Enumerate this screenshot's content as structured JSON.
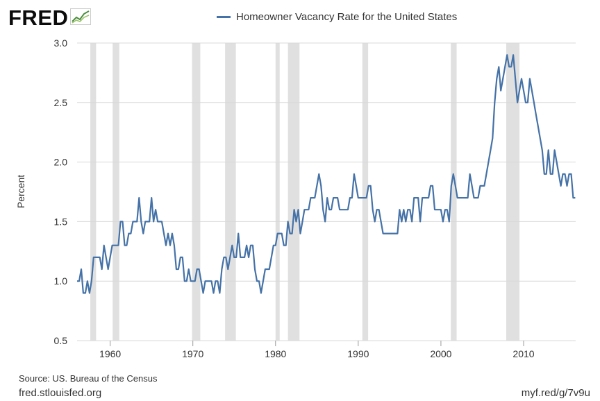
{
  "header": {
    "logo_text": "FRED",
    "logo_icon": "chart-line-icon"
  },
  "legend": {
    "label": "Homeowner Vacancy Rate for the United States",
    "color": "#4572a7"
  },
  "footer": {
    "source": "Source: US. Bureau of the Census",
    "site": "fred.stlouisfed.org",
    "link": "myf.red/g/7v9u"
  },
  "colors": {
    "series": "#4572a7",
    "recession": "#e0e0e0",
    "grid": "#d8d8d8"
  },
  "chart_data": {
    "type": "line",
    "title": "",
    "xlabel": "",
    "ylabel": "Percent",
    "ylim": [
      0.5,
      3.0
    ],
    "xlim": [
      1956,
      2016.3
    ],
    "yticks": [
      "0.5",
      "1.0",
      "1.5",
      "2.0",
      "2.5",
      "3.0"
    ],
    "xticks": [
      "1960",
      "1970",
      "1980",
      "1990",
      "2000",
      "2010"
    ],
    "grid": true,
    "legend_position": "top",
    "recessions": [
      [
        1957.6,
        1958.3
      ],
      [
        1960.3,
        1961.1
      ],
      [
        1969.9,
        1970.9
      ],
      [
        1973.9,
        1975.2
      ],
      [
        1980.0,
        1980.5
      ],
      [
        1981.5,
        1982.9
      ],
      [
        1990.5,
        1991.2
      ],
      [
        2001.2,
        2001.9
      ],
      [
        2007.9,
        2009.5
      ]
    ],
    "series": [
      {
        "name": "Homeowner Vacancy Rate for the United States",
        "x": [
          1956.0,
          1956.25,
          1956.5,
          1956.75,
          1957.0,
          1957.25,
          1957.5,
          1957.75,
          1958.0,
          1958.25,
          1958.5,
          1958.75,
          1959.0,
          1959.25,
          1959.5,
          1959.75,
          1960.0,
          1960.25,
          1960.5,
          1960.75,
          1961.0,
          1961.25,
          1961.5,
          1961.75,
          1962.0,
          1962.25,
          1962.5,
          1962.75,
          1963.0,
          1963.25,
          1963.5,
          1963.75,
          1964.0,
          1964.25,
          1964.5,
          1964.75,
          1965.0,
          1965.25,
          1965.5,
          1965.75,
          1966.0,
          1966.25,
          1966.5,
          1966.75,
          1967.0,
          1967.25,
          1967.5,
          1967.75,
          1968.0,
          1968.25,
          1968.5,
          1968.75,
          1969.0,
          1969.25,
          1969.5,
          1969.75,
          1970.0,
          1970.25,
          1970.5,
          1970.75,
          1971.0,
          1971.25,
          1971.5,
          1971.75,
          1972.0,
          1972.25,
          1972.5,
          1972.75,
          1973.0,
          1973.25,
          1973.5,
          1973.75,
          1974.0,
          1974.25,
          1974.5,
          1974.75,
          1975.0,
          1975.25,
          1975.5,
          1975.75,
          1976.0,
          1976.25,
          1976.5,
          1976.75,
          1977.0,
          1977.25,
          1977.5,
          1977.75,
          1978.0,
          1978.25,
          1978.5,
          1978.75,
          1979.0,
          1979.25,
          1979.5,
          1979.75,
          1980.0,
          1980.25,
          1980.5,
          1980.75,
          1981.0,
          1981.25,
          1981.5,
          1981.75,
          1982.0,
          1982.25,
          1982.5,
          1982.75,
          1983.0,
          1983.25,
          1983.5,
          1983.75,
          1984.0,
          1984.25,
          1984.5,
          1984.75,
          1985.0,
          1985.25,
          1985.5,
          1985.75,
          1986.0,
          1986.25,
          1986.5,
          1986.75,
          1987.0,
          1987.25,
          1987.5,
          1987.75,
          1988.0,
          1988.25,
          1988.5,
          1988.75,
          1989.0,
          1989.25,
          1989.5,
          1989.75,
          1990.0,
          1990.25,
          1990.5,
          1990.75,
          1991.0,
          1991.25,
          1991.5,
          1991.75,
          1992.0,
          1992.25,
          1992.5,
          1992.75,
          1993.0,
          1993.25,
          1993.5,
          1993.75,
          1994.0,
          1994.25,
          1994.5,
          1994.75,
          1995.0,
          1995.25,
          1995.5,
          1995.75,
          1996.0,
          1996.25,
          1996.5,
          1996.75,
          1997.0,
          1997.25,
          1997.5,
          1997.75,
          1998.0,
          1998.25,
          1998.5,
          1998.75,
          1999.0,
          1999.25,
          1999.5,
          1999.75,
          2000.0,
          2000.25,
          2000.5,
          2000.75,
          2001.0,
          2001.25,
          2001.5,
          2001.75,
          2002.0,
          2002.25,
          2002.5,
          2002.75,
          2003.0,
          2003.25,
          2003.5,
          2003.75,
          2004.0,
          2004.25,
          2004.5,
          2004.75,
          2005.0,
          2005.25,
          2005.5,
          2005.75,
          2006.0,
          2006.25,
          2006.5,
          2006.75,
          2007.0,
          2007.25,
          2007.5,
          2007.75,
          2008.0,
          2008.25,
          2008.5,
          2008.75,
          2009.0,
          2009.25,
          2009.5,
          2009.75,
          2010.0,
          2010.25,
          2010.5,
          2010.75,
          2011.0,
          2011.25,
          2011.5,
          2011.75,
          2012.0,
          2012.25,
          2012.5,
          2012.75,
          2013.0,
          2013.25,
          2013.5,
          2013.75,
          2014.0,
          2014.25,
          2014.5,
          2014.75,
          2015.0,
          2015.25,
          2015.5,
          2015.75,
          2016.0,
          2016.25
        ],
        "values": [
          1.0,
          1.0,
          1.1,
          0.9,
          0.9,
          1.0,
          0.9,
          1.0,
          1.2,
          1.2,
          1.2,
          1.2,
          1.1,
          1.3,
          1.2,
          1.1,
          1.2,
          1.3,
          1.3,
          1.3,
          1.3,
          1.5,
          1.5,
          1.3,
          1.3,
          1.4,
          1.4,
          1.5,
          1.5,
          1.5,
          1.7,
          1.5,
          1.4,
          1.5,
          1.5,
          1.5,
          1.7,
          1.5,
          1.6,
          1.5,
          1.5,
          1.5,
          1.4,
          1.3,
          1.4,
          1.3,
          1.4,
          1.3,
          1.1,
          1.1,
          1.2,
          1.2,
          1.0,
          1.0,
          1.1,
          1.0,
          1.0,
          1.0,
          1.1,
          1.1,
          1.0,
          0.9,
          1.0,
          1.0,
          1.0,
          1.0,
          0.9,
          1.0,
          1.0,
          0.9,
          1.1,
          1.2,
          1.2,
          1.1,
          1.2,
          1.3,
          1.2,
          1.2,
          1.4,
          1.2,
          1.2,
          1.2,
          1.3,
          1.2,
          1.3,
          1.3,
          1.1,
          1.0,
          1.0,
          0.9,
          1.0,
          1.1,
          1.1,
          1.1,
          1.2,
          1.3,
          1.3,
          1.4,
          1.4,
          1.4,
          1.3,
          1.3,
          1.5,
          1.4,
          1.4,
          1.6,
          1.5,
          1.6,
          1.4,
          1.5,
          1.6,
          1.6,
          1.6,
          1.7,
          1.7,
          1.7,
          1.8,
          1.9,
          1.8,
          1.6,
          1.5,
          1.7,
          1.6,
          1.6,
          1.7,
          1.7,
          1.7,
          1.6,
          1.6,
          1.6,
          1.6,
          1.6,
          1.7,
          1.7,
          1.9,
          1.8,
          1.7,
          1.7,
          1.7,
          1.7,
          1.7,
          1.8,
          1.8,
          1.6,
          1.5,
          1.6,
          1.6,
          1.5,
          1.4,
          1.4,
          1.4,
          1.4,
          1.4,
          1.4,
          1.4,
          1.4,
          1.6,
          1.5,
          1.6,
          1.5,
          1.6,
          1.6,
          1.5,
          1.7,
          1.7,
          1.7,
          1.5,
          1.7,
          1.7,
          1.7,
          1.7,
          1.8,
          1.8,
          1.6,
          1.6,
          1.6,
          1.6,
          1.5,
          1.6,
          1.6,
          1.5,
          1.8,
          1.9,
          1.8,
          1.7,
          1.7,
          1.7,
          1.7,
          1.7,
          1.7,
          1.9,
          1.8,
          1.7,
          1.7,
          1.7,
          1.8,
          1.8,
          1.8,
          1.9,
          2.0,
          2.1,
          2.2,
          2.5,
          2.7,
          2.8,
          2.6,
          2.7,
          2.8,
          2.9,
          2.8,
          2.8,
          2.9,
          2.7,
          2.5,
          2.6,
          2.7,
          2.6,
          2.5,
          2.5,
          2.7,
          2.6,
          2.5,
          2.4,
          2.3,
          2.2,
          2.1,
          1.9,
          1.9,
          2.1,
          1.9,
          1.9,
          2.1,
          2.0,
          1.9,
          1.8,
          1.9,
          1.9,
          1.8,
          1.9,
          1.9,
          1.7,
          1.7
        ]
      }
    ]
  }
}
